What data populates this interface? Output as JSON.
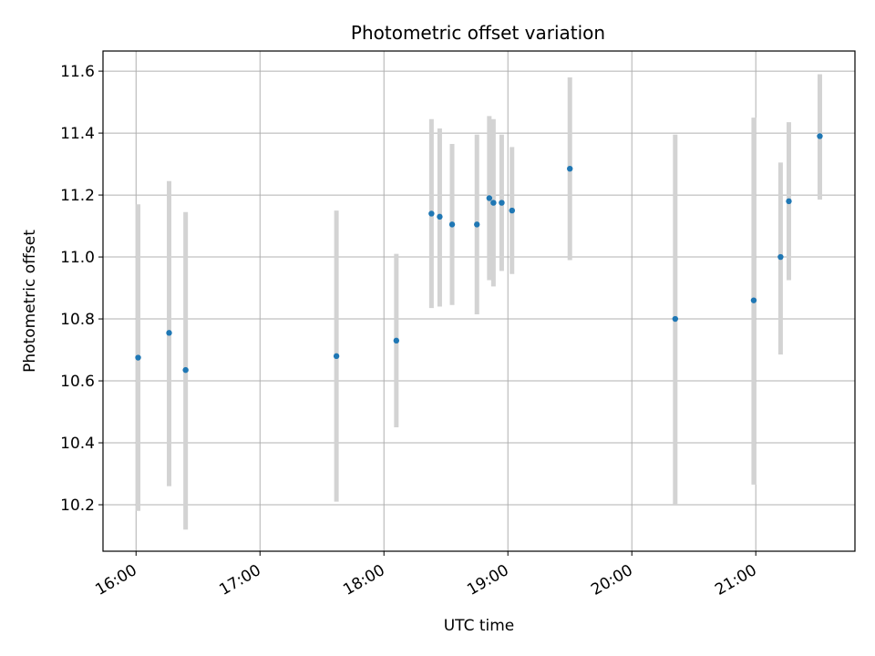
{
  "chart_data": {
    "type": "scatter",
    "title": "Photometric offset variation",
    "xlabel": "UTC time",
    "ylabel": "Photometric offset",
    "xlim": [
      "15:44",
      "21:48"
    ],
    "ylim": [
      10.05,
      11.665
    ],
    "grid": true,
    "legend": "none",
    "x_ticks": [
      "16:00",
      "17:00",
      "18:00",
      "19:00",
      "20:00",
      "21:00"
    ],
    "y_ticks": [
      "10.2",
      "10.4",
      "10.6",
      "10.8",
      "11.0",
      "11.2",
      "11.4",
      "11.6"
    ],
    "point_color": "#1f77b4",
    "errorbar_color": "#d3d3d3",
    "points": [
      {
        "t": "16:01",
        "y": 10.675,
        "lo": 10.18,
        "hi": 11.17
      },
      {
        "t": "16:16",
        "y": 10.755,
        "lo": 10.26,
        "hi": 11.245
      },
      {
        "t": "16:24",
        "y": 10.635,
        "lo": 10.12,
        "hi": 11.145
      },
      {
        "t": "17:37",
        "y": 10.68,
        "lo": 10.21,
        "hi": 11.15
      },
      {
        "t": "18:06",
        "y": 10.73,
        "lo": 10.45,
        "hi": 11.01
      },
      {
        "t": "18:23",
        "y": 11.14,
        "lo": 10.835,
        "hi": 11.445
      },
      {
        "t": "18:27",
        "y": 11.13,
        "lo": 10.84,
        "hi": 11.415
      },
      {
        "t": "18:33",
        "y": 11.105,
        "lo": 10.845,
        "hi": 11.365
      },
      {
        "t": "18:45",
        "y": 11.105,
        "lo": 10.815,
        "hi": 11.395
      },
      {
        "t": "18:51",
        "y": 11.19,
        "lo": 10.925,
        "hi": 11.455
      },
      {
        "t": "18:53",
        "y": 11.175,
        "lo": 10.905,
        "hi": 11.445
      },
      {
        "t": "18:57",
        "y": 11.175,
        "lo": 10.955,
        "hi": 11.395
      },
      {
        "t": "19:02",
        "y": 11.15,
        "lo": 10.945,
        "hi": 11.355
      },
      {
        "t": "19:30",
        "y": 11.285,
        "lo": 10.99,
        "hi": 11.58
      },
      {
        "t": "20:21",
        "y": 10.8,
        "lo": 10.2,
        "hi": 11.395
      },
      {
        "t": "20:59",
        "y": 10.86,
        "lo": 10.265,
        "hi": 11.45
      },
      {
        "t": "21:12",
        "y": 11.0,
        "lo": 10.685,
        "hi": 11.305
      },
      {
        "t": "21:16",
        "y": 11.18,
        "lo": 10.925,
        "hi": 11.435
      },
      {
        "t": "21:31",
        "y": 11.39,
        "lo": 11.185,
        "hi": 11.59
      }
    ]
  }
}
